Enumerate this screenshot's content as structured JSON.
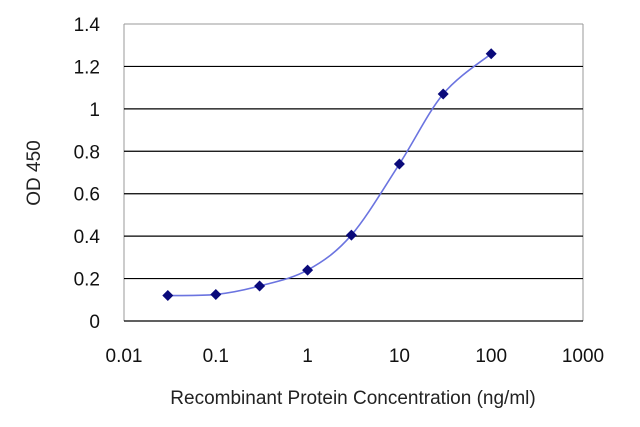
{
  "chart_data": {
    "type": "scatter",
    "xscale": "log",
    "xlim": [
      0.01,
      1000
    ],
    "ylim": [
      0,
      1.4
    ],
    "xticks": [
      0.01,
      0.1,
      1,
      10,
      100,
      1000
    ],
    "xtick_labels": [
      "0.01",
      "0.1",
      "1",
      "10",
      "100",
      "1000"
    ],
    "yticks": [
      0,
      0.2,
      0.4,
      0.6,
      0.8,
      1,
      1.2,
      1.4
    ],
    "ytick_labels": [
      "0",
      "0.2",
      "0.4",
      "0.6",
      "0.8",
      "1",
      "1.2",
      "1.4"
    ],
    "xlabel": "Recombinant Protein Concentration (ng/ml)",
    "ylabel": "OD 450",
    "grid": "horizontal",
    "series": [
      {
        "x": [
          0.03,
          0.1,
          0.3,
          1,
          3,
          10,
          30,
          100
        ],
        "y": [
          0.12,
          0.125,
          0.165,
          0.24,
          0.405,
          0.74,
          1.07,
          1.26
        ],
        "color": "#0a0a7a",
        "line_color": "#6b74e0"
      }
    ]
  }
}
